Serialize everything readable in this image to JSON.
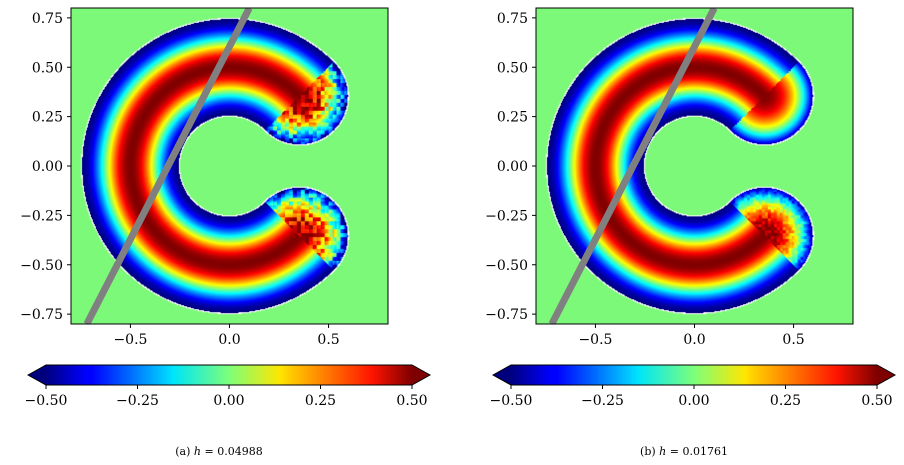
{
  "chart_data": [
    {
      "type": "heatmap",
      "caption_prefix": "(a)",
      "caption_var": "h",
      "caption_eq": "= 0.04988",
      "xlim": [
        -0.8,
        0.8
      ],
      "ylim": [
        -0.8,
        0.8
      ],
      "xticks": [
        -0.5,
        0.0,
        0.5
      ],
      "yticks": [
        -0.75,
        -0.5,
        -0.25,
        0.0,
        0.25,
        0.5,
        0.75
      ],
      "xtick_labels": [
        "−0.5",
        "0.0",
        "0.5"
      ],
      "ytick_labels": [
        "−0.75",
        "−0.50",
        "−0.25",
        "0.00",
        "0.25",
        "0.50",
        "0.75"
      ],
      "colorbar": {
        "range": [
          -0.5,
          0.5
        ],
        "extend": "both",
        "colormap": "jet",
        "ticks": [
          -0.5,
          -0.25,
          0.0,
          0.25,
          0.5
        ],
        "tick_labels": [
          "−0.50",
          "−0.25",
          "0.00",
          "0.25",
          "0.50"
        ]
      },
      "background_color": "#7df97a",
      "line": {
        "x1": -0.72,
        "y1": -0.8,
        "x2": 0.1,
        "y2": 0.8,
        "color": "#808080"
      },
      "domain": {
        "outer_radius": 0.75,
        "inner_radius": 0.25,
        "opening_angle_deg": 45
      },
      "noise": true
    },
    {
      "type": "heatmap",
      "caption_prefix": "(b)",
      "caption_var": "h",
      "caption_eq": "= 0.01761",
      "xlim": [
        -0.8,
        0.8
      ],
      "ylim": [
        -0.8,
        0.8
      ],
      "xticks": [
        -0.5,
        0.0,
        0.5
      ],
      "yticks": [
        -0.75,
        -0.5,
        -0.25,
        0.0,
        0.25,
        0.5,
        0.75
      ],
      "xtick_labels": [
        "−0.5",
        "0.0",
        "0.5"
      ],
      "ytick_labels": [
        "−0.75",
        "−0.50",
        "−0.25",
        "0.00",
        "0.25",
        "0.50",
        "0.75"
      ],
      "colorbar": {
        "range": [
          -0.5,
          0.5
        ],
        "extend": "both",
        "colormap": "jet",
        "ticks": [
          -0.5,
          -0.25,
          0.0,
          0.25,
          0.5
        ],
        "tick_labels": [
          "−0.50",
          "−0.25",
          "0.00",
          "0.25",
          "0.50"
        ]
      },
      "background_color": "#7df97a",
      "line": {
        "x1": -0.72,
        "y1": -0.8,
        "x2": 0.1,
        "y2": 0.8,
        "color": "#808080"
      },
      "domain": {
        "outer_radius": 0.75,
        "inner_radius": 0.25,
        "opening_angle_deg": 45
      },
      "noise": false
    }
  ]
}
